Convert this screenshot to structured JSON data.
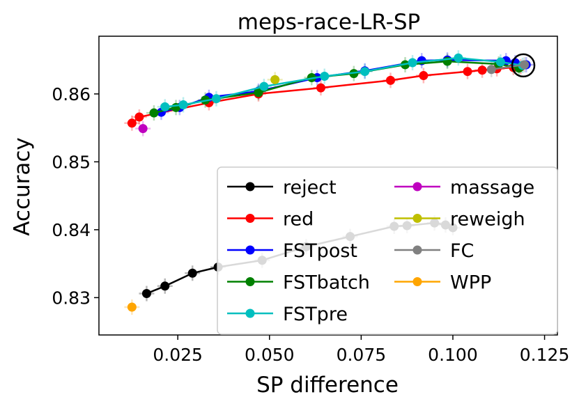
{
  "chart_data": {
    "type": "line",
    "title": "meps-race-LR-SP",
    "xlabel": "SP difference",
    "ylabel": "Accuracy",
    "xlim": [
      0.0035,
      0.1285
    ],
    "ylim": [
      0.8245,
      0.8685
    ],
    "xticks": [
      0.025,
      0.05,
      0.075,
      0.1,
      0.125
    ],
    "xtick_labels": [
      "0.025",
      "0.050",
      "0.075",
      "0.100",
      "0.125"
    ],
    "yticks": [
      0.83,
      0.84,
      0.85,
      0.86
    ],
    "ytick_labels": [
      "0.83",
      "0.84",
      "0.85",
      "0.86"
    ],
    "grid": false,
    "legend_position": "lower-right",
    "legend_columns": 2,
    "highlight": {
      "x": 0.1192,
      "y": 0.8642,
      "marker": "circle"
    },
    "series": [
      {
        "name": "reject",
        "color": "#000000",
        "x": [
          0.0165,
          0.0215,
          0.029,
          0.036,
          0.048,
          0.06,
          0.072,
          0.084,
          0.0875,
          0.095,
          0.098,
          0.1
        ],
        "y": [
          0.8306,
          0.8317,
          0.8336,
          0.8345,
          0.8355,
          0.8375,
          0.839,
          0.8405,
          0.8406,
          0.841,
          0.8407,
          0.8403
        ]
      },
      {
        "name": "red",
        "color": "#ff0000",
        "x": [
          0.0125,
          0.0145,
          0.0335,
          0.047,
          0.064,
          0.083,
          0.092,
          0.104,
          0.108,
          0.112,
          0.1165,
          0.1185
        ],
        "y": [
          0.8557,
          0.8566,
          0.8587,
          0.86,
          0.8609,
          0.862,
          0.8627,
          0.8633,
          0.8635,
          0.8637,
          0.8639,
          0.864
        ]
      },
      {
        "name": "FSTpost",
        "color": "#0000ff",
        "x": [
          0.0205,
          0.0255,
          0.0335,
          0.047,
          0.063,
          0.076,
          0.0915,
          0.0985,
          0.1145,
          0.117,
          0.12
        ],
        "y": [
          0.8573,
          0.858,
          0.8595,
          0.8604,
          0.8624,
          0.8634,
          0.8649,
          0.865,
          0.8649,
          0.8646,
          0.8643
        ]
      },
      {
        "name": "FSTbatch",
        "color": "#008000",
        "x": [
          0.0185,
          0.0245,
          0.0325,
          0.047,
          0.0615,
          0.073,
          0.087,
          0.0985,
          0.1125,
          0.118
        ],
        "y": [
          0.8572,
          0.858,
          0.8591,
          0.8602,
          0.8624,
          0.863,
          0.8643,
          0.8648,
          0.8644,
          0.8638
        ]
      },
      {
        "name": "FSTpre",
        "color": "#00bfbf",
        "x": [
          0.0215,
          0.0265,
          0.0355,
          0.0485,
          0.065,
          0.076,
          0.089,
          0.1015,
          0.113,
          0.119
        ],
        "y": [
          0.8581,
          0.8584,
          0.8593,
          0.8611,
          0.8626,
          0.8633,
          0.8646,
          0.8653,
          0.8647,
          0.8642
        ]
      },
      {
        "name": "massage",
        "color": "#bf00bf",
        "x": [
          0.0155
        ],
        "y": [
          0.8549
        ]
      },
      {
        "name": "reweigh",
        "color": "#bfbf00",
        "x": [
          0.0515
        ],
        "y": [
          0.8621
        ]
      },
      {
        "name": "FC",
        "color": "#808080",
        "x": [
          0.1105,
          0.1195
        ],
        "y": [
          0.8636,
          0.8643
        ]
      },
      {
        "name": "WPP",
        "color": "#ffa500",
        "x": [
          0.0125
        ],
        "y": [
          0.8286
        ]
      }
    ]
  }
}
